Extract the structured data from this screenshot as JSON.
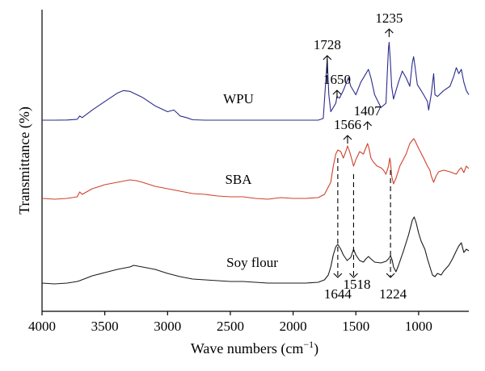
{
  "chart_data": {
    "type": "line",
    "title": "",
    "xlabel_main": "Wave numbers (cm",
    "xlabel_sup": "−1",
    "xlabel_close": ")",
    "ylabel": "Transmittance (%)",
    "xlim": [
      4000,
      600
    ],
    "x_reversed": true,
    "y_ticks_shown": false,
    "x_ticks": [
      4000,
      3500,
      3000,
      2500,
      2000,
      1500,
      1000
    ],
    "x_tick_labels": [
      "4000",
      "3500",
      "3000",
      "2500",
      "2000",
      "1500",
      "1000"
    ],
    "series": [
      {
        "name": "WPU",
        "color": "#2b2b8c",
        "points": [
          [
            4000,
            0
          ],
          [
            3900,
            0
          ],
          [
            3800,
            0.2
          ],
          [
            3720,
            1
          ],
          [
            3700,
            5
          ],
          [
            3680,
            3
          ],
          [
            3600,
            12
          ],
          [
            3500,
            22
          ],
          [
            3400,
            32
          ],
          [
            3350,
            35
          ],
          [
            3300,
            34
          ],
          [
            3200,
            27
          ],
          [
            3100,
            17
          ],
          [
            3000,
            10
          ],
          [
            2950,
            12
          ],
          [
            2920,
            8
          ],
          [
            2900,
            5
          ],
          [
            2850,
            3
          ],
          [
            2800,
            0.5
          ],
          [
            2700,
            0
          ],
          [
            2000,
            0
          ],
          [
            1900,
            0
          ],
          [
            1800,
            0
          ],
          [
            1760,
            2
          ],
          [
            1745,
            35
          ],
          [
            1728,
            72
          ],
          [
            1715,
            30
          ],
          [
            1700,
            10
          ],
          [
            1680,
            15
          ],
          [
            1660,
            20
          ],
          [
            1650,
            28
          ],
          [
            1630,
            26
          ],
          [
            1600,
            35
          ],
          [
            1560,
            50
          ],
          [
            1540,
            40
          ],
          [
            1500,
            30
          ],
          [
            1460,
            45
          ],
          [
            1420,
            55
          ],
          [
            1400,
            60
          ],
          [
            1380,
            50
          ],
          [
            1350,
            30
          ],
          [
            1300,
            15
          ],
          [
            1260,
            20
          ],
          [
            1250,
            55
          ],
          [
            1240,
            85
          ],
          [
            1235,
            92
          ],
          [
            1225,
            70
          ],
          [
            1215,
            40
          ],
          [
            1200,
            25
          ],
          [
            1160,
            45
          ],
          [
            1130,
            58
          ],
          [
            1100,
            50
          ],
          [
            1070,
            40
          ],
          [
            1050,
            68
          ],
          [
            1040,
            75
          ],
          [
            1030,
            65
          ],
          [
            1010,
            42
          ],
          [
            980,
            35
          ],
          [
            960,
            30
          ],
          [
            930,
            22
          ],
          [
            920,
            12
          ],
          [
            900,
            30
          ],
          [
            880,
            55
          ],
          [
            870,
            30
          ],
          [
            850,
            28
          ],
          [
            800,
            35
          ],
          [
            750,
            40
          ],
          [
            720,
            52
          ],
          [
            700,
            62
          ],
          [
            680,
            55
          ],
          [
            660,
            60
          ],
          [
            640,
            45
          ],
          [
            620,
            35
          ],
          [
            600,
            30
          ]
        ]
      },
      {
        "name": "SBA",
        "color": "#d0402a",
        "points": [
          [
            4000,
            0
          ],
          [
            3900,
            -1
          ],
          [
            3800,
            0
          ],
          [
            3720,
            2
          ],
          [
            3700,
            8
          ],
          [
            3680,
            5
          ],
          [
            3600,
            12
          ],
          [
            3500,
            17
          ],
          [
            3400,
            20
          ],
          [
            3300,
            23
          ],
          [
            3250,
            22
          ],
          [
            3200,
            20
          ],
          [
            3100,
            15
          ],
          [
            3000,
            12
          ],
          [
            2900,
            9
          ],
          [
            2800,
            6
          ],
          [
            2700,
            5
          ],
          [
            2600,
            3
          ],
          [
            2500,
            2
          ],
          [
            2400,
            2
          ],
          [
            2300,
            0
          ],
          [
            2200,
            -1
          ],
          [
            2100,
            1
          ],
          [
            2000,
            0
          ],
          [
            1900,
            0
          ],
          [
            1800,
            1
          ],
          [
            1750,
            5
          ],
          [
            1700,
            20
          ],
          [
            1680,
            40
          ],
          [
            1660,
            55
          ],
          [
            1644,
            60
          ],
          [
            1620,
            58
          ],
          [
            1600,
            50
          ],
          [
            1580,
            58
          ],
          [
            1566,
            65
          ],
          [
            1550,
            58
          ],
          [
            1535,
            50
          ],
          [
            1518,
            40
          ],
          [
            1500,
            48
          ],
          [
            1470,
            58
          ],
          [
            1440,
            55
          ],
          [
            1420,
            63
          ],
          [
            1407,
            68
          ],
          [
            1395,
            62
          ],
          [
            1380,
            50
          ],
          [
            1360,
            45
          ],
          [
            1330,
            40
          ],
          [
            1300,
            38
          ],
          [
            1280,
            35
          ],
          [
            1260,
            30
          ],
          [
            1240,
            40
          ],
          [
            1230,
            50
          ],
          [
            1224,
            45
          ],
          [
            1215,
            28
          ],
          [
            1200,
            18
          ],
          [
            1180,
            25
          ],
          [
            1150,
            40
          ],
          [
            1100,
            55
          ],
          [
            1070,
            68
          ],
          [
            1050,
            72
          ],
          [
            1040,
            74
          ],
          [
            1030,
            72
          ],
          [
            1000,
            62
          ],
          [
            960,
            50
          ],
          [
            930,
            40
          ],
          [
            910,
            35
          ],
          [
            900,
            28
          ],
          [
            880,
            20
          ],
          [
            860,
            28
          ],
          [
            840,
            33
          ],
          [
            800,
            35
          ],
          [
            750,
            33
          ],
          [
            700,
            30
          ],
          [
            680,
            35
          ],
          [
            660,
            38
          ],
          [
            640,
            32
          ],
          [
            620,
            40
          ],
          [
            600,
            37
          ]
        ]
      },
      {
        "name": "Soy flour",
        "color": "#1a1a1a",
        "points": [
          [
            4000,
            0
          ],
          [
            3900,
            -1
          ],
          [
            3800,
            0
          ],
          [
            3720,
            2
          ],
          [
            3700,
            3
          ],
          [
            3650,
            6
          ],
          [
            3600,
            9
          ],
          [
            3500,
            13
          ],
          [
            3400,
            17
          ],
          [
            3300,
            20
          ],
          [
            3270,
            22
          ],
          [
            3200,
            20
          ],
          [
            3100,
            17
          ],
          [
            3000,
            12
          ],
          [
            2900,
            8
          ],
          [
            2800,
            5
          ],
          [
            2700,
            4
          ],
          [
            2600,
            3
          ],
          [
            2500,
            2
          ],
          [
            2400,
            2
          ],
          [
            2300,
            1
          ],
          [
            2200,
            0
          ],
          [
            2100,
            0
          ],
          [
            2000,
            0
          ],
          [
            1900,
            0
          ],
          [
            1800,
            1
          ],
          [
            1750,
            4
          ],
          [
            1720,
            10
          ],
          [
            1700,
            20
          ],
          [
            1680,
            35
          ],
          [
            1660,
            45
          ],
          [
            1644,
            48
          ],
          [
            1620,
            42
          ],
          [
            1600,
            35
          ],
          [
            1570,
            28
          ],
          [
            1540,
            32
          ],
          [
            1518,
            42
          ],
          [
            1500,
            35
          ],
          [
            1470,
            28
          ],
          [
            1440,
            26
          ],
          [
            1420,
            30
          ],
          [
            1400,
            33
          ],
          [
            1380,
            30
          ],
          [
            1350,
            26
          ],
          [
            1300,
            25
          ],
          [
            1260,
            27
          ],
          [
            1240,
            30
          ],
          [
            1224,
            34
          ],
          [
            1210,
            28
          ],
          [
            1200,
            20
          ],
          [
            1180,
            14
          ],
          [
            1160,
            22
          ],
          [
            1120,
            40
          ],
          [
            1080,
            60
          ],
          [
            1050,
            78
          ],
          [
            1035,
            82
          ],
          [
            1020,
            75
          ],
          [
            1000,
            62
          ],
          [
            980,
            52
          ],
          [
            950,
            42
          ],
          [
            930,
            30
          ],
          [
            910,
            20
          ],
          [
            890,
            10
          ],
          [
            870,
            8
          ],
          [
            850,
            12
          ],
          [
            820,
            10
          ],
          [
            800,
            15
          ],
          [
            760,
            22
          ],
          [
            730,
            30
          ],
          [
            700,
            40
          ],
          [
            680,
            46
          ],
          [
            660,
            50
          ],
          [
            640,
            38
          ],
          [
            620,
            42
          ],
          [
            600,
            40
          ]
        ]
      }
    ],
    "annotations": [
      {
        "label": "1728",
        "series": "WPU",
        "x": 1728,
        "direction": "up"
      },
      {
        "label": "1650",
        "series": "WPU",
        "x": 1650,
        "direction": "up"
      },
      {
        "label": "1235",
        "series": "WPU",
        "x": 1235,
        "direction": "up"
      },
      {
        "label": "1566",
        "series": "SBA",
        "x": 1566,
        "direction": "up"
      },
      {
        "label": "1407",
        "series": "SBA",
        "x": 1407,
        "direction": "up"
      },
      {
        "label": "1644",
        "series": "Soy flour",
        "x": 1644,
        "direction": "down-dashed"
      },
      {
        "label": "1518",
        "series": "Soy flour",
        "x": 1518,
        "direction": "down-dashed"
      },
      {
        "label": "1224",
        "series": "Soy flour",
        "x": 1224,
        "direction": "down-dashed"
      }
    ],
    "legend": "inline labels near curves"
  }
}
